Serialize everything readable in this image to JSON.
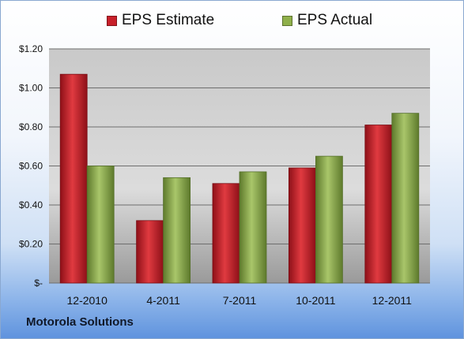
{
  "chart_data": {
    "type": "bar",
    "categories": [
      "12-2010",
      "4-2011",
      "7-2011",
      "10-2011",
      "12-2011"
    ],
    "series": [
      {
        "name": "EPS Estimate",
        "color": "#c8202a",
        "values": [
          1.07,
          0.32,
          0.51,
          0.59,
          0.81
        ]
      },
      {
        "name": "EPS Actual",
        "color": "#8fb04a",
        "values": [
          0.6,
          0.54,
          0.57,
          0.65,
          0.87
        ]
      }
    ],
    "y_ticks": [
      {
        "value": 0,
        "label": "$-"
      },
      {
        "value": 0.2,
        "label": "$0.20"
      },
      {
        "value": 0.4,
        "label": "$0.40"
      },
      {
        "value": 0.6,
        "label": "$0.60"
      },
      {
        "value": 0.8,
        "label": "$0.80"
      },
      {
        "value": 1.0,
        "label": "$1.00"
      },
      {
        "value": 1.2,
        "label": "$1.20"
      }
    ],
    "ylim": [
      0,
      1.2
    ],
    "grid": true,
    "legend_position": "top-center"
  },
  "footer": {
    "company": "Motorola Solutions"
  }
}
